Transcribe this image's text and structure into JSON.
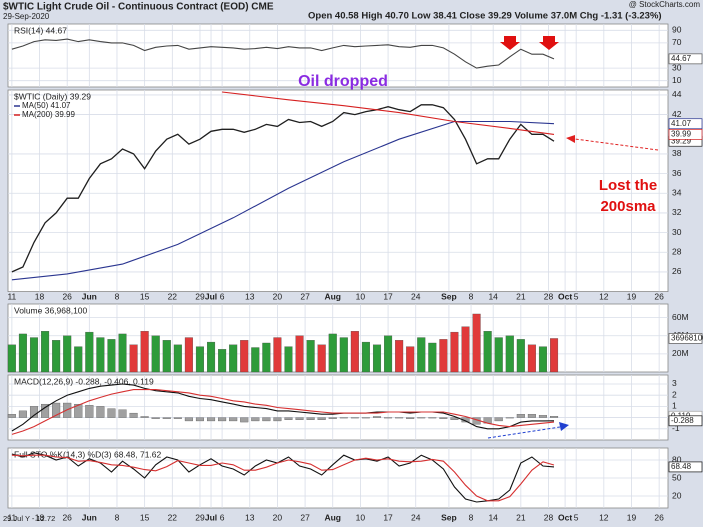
{
  "header": {
    "title": "$WTIC Light Crude Oil - Continuous Contract (EOD) CME",
    "date": "29-Sep-2020",
    "quote": "Open 40.58 High 40.70 Low 38.41 Close 39.29 Volume 37.0M Chg -1.31 (-3.23%)",
    "source": "@ StockCharts.com",
    "footer": "29 Jul Y - 12.72"
  },
  "chart_data": [
    {
      "type": "line",
      "title": "RSI(14) 44.67",
      "last_label": "44.67",
      "x": [
        0,
        2,
        4,
        6,
        8,
        10,
        12,
        14,
        16,
        18,
        20,
        22,
        24,
        26,
        28,
        30,
        32,
        34,
        36,
        38,
        40,
        42,
        44,
        46,
        48,
        50,
        52,
        54,
        56,
        58,
        60,
        62,
        64,
        66,
        68,
        70,
        72,
        74,
        76,
        78,
        80,
        82,
        84,
        86,
        88,
        90,
        92,
        94,
        96,
        98
      ],
      "series": [
        {
          "name": "RSI(14)",
          "color": "#444444",
          "values": [
            60,
            65,
            72,
            75,
            74,
            76,
            72,
            75,
            72,
            70,
            70,
            66,
            58,
            63,
            65,
            66,
            60,
            62,
            64,
            63,
            62,
            60,
            61,
            63,
            61,
            64,
            62,
            62,
            58,
            62,
            66,
            64,
            65,
            66,
            67,
            64,
            63,
            66,
            66,
            62,
            52,
            40,
            30,
            33,
            35,
            48,
            60,
            52,
            52,
            44.67
          ]
        }
      ],
      "ylim": [
        0,
        100
      ],
      "yticks": [
        10,
        30,
        70,
        90
      ],
      "grid": true
    },
    {
      "type": "line",
      "title": "$WTIC (Daily) 39.29",
      "legend": [
        "MA(50) 41.07",
        "MA(200) 39.99"
      ],
      "annotations": [
        "Oil dropped",
        "Lost the",
        "200sma"
      ],
      "x": [
        0,
        2,
        4,
        6,
        8,
        10,
        12,
        14,
        16,
        18,
        20,
        22,
        24,
        26,
        28,
        30,
        32,
        34,
        36,
        38,
        40,
        42,
        44,
        46,
        48,
        50,
        52,
        54,
        56,
        58,
        60,
        62,
        64,
        66,
        68,
        70,
        72,
        74,
        76,
        78,
        80,
        82,
        84,
        86,
        88,
        90,
        92,
        94,
        96,
        98
      ],
      "series": [
        {
          "name": "$WTIC (Daily)",
          "color": "#1f1f1f",
          "last_label": "39.29",
          "values": [
            26,
            26.5,
            29,
            31,
            32,
            33.5,
            33.5,
            35.5,
            37,
            37.5,
            38.5,
            38,
            36.5,
            38.3,
            39.5,
            40,
            39,
            39.5,
            40.3,
            40.5,
            40.5,
            40.2,
            40.5,
            41,
            40.8,
            41.5,
            41.2,
            41.3,
            40.8,
            41.3,
            42.2,
            42,
            42.3,
            42.5,
            42.8,
            42.5,
            42.3,
            43,
            43,
            42.7,
            41.5,
            39.5,
            37,
            37.5,
            37.5,
            39.5,
            41,
            40,
            40,
            39.29
          ]
        },
        {
          "name": "MA(50)",
          "color": "#2a3590",
          "last_label": "41.07",
          "x": [
            0,
            10,
            20,
            30,
            40,
            50,
            60,
            70,
            80,
            90,
            98
          ],
          "values": [
            25.2,
            25.8,
            26.8,
            28.8,
            31.5,
            34.5,
            37.2,
            39.5,
            41.3,
            41.3,
            41.07
          ]
        },
        {
          "name": "MA(200)",
          "color": "#d62020",
          "last_label": "39.99",
          "x": [
            38,
            50,
            60,
            70,
            80,
            90,
            98
          ],
          "values": [
            44.3,
            43.5,
            42.9,
            42.2,
            41.3,
            40.6,
            39.99
          ]
        }
      ],
      "xlim": [
        -0.7,
        118.6
      ],
      "xticks": [
        {
          "value": 0,
          "label": "11"
        },
        {
          "value": 5,
          "label": "18"
        },
        {
          "value": 10,
          "label": "26"
        },
        {
          "value": 14,
          "label": "Jun"
        },
        {
          "value": 19,
          "label": "8"
        },
        {
          "value": 24,
          "label": "15"
        },
        {
          "value": 29,
          "label": "22"
        },
        {
          "value": 34,
          "label": "29"
        },
        {
          "value": 36,
          "label": "Jul"
        },
        {
          "value": 38,
          "label": "6"
        },
        {
          "value": 43,
          "label": "13"
        },
        {
          "value": 48,
          "label": "20"
        },
        {
          "value": 53,
          "label": "27"
        },
        {
          "value": 58,
          "label": "Aug"
        },
        {
          "value": 63,
          "label": "10"
        },
        {
          "value": 68,
          "label": "17"
        },
        {
          "value": 73,
          "label": "24"
        },
        {
          "value": 79,
          "label": "Sep"
        },
        {
          "value": 83,
          "label": "8"
        },
        {
          "value": 87,
          "label": "14"
        },
        {
          "value": 92,
          "label": "21"
        },
        {
          "value": 97,
          "label": "28"
        },
        {
          "value": 100,
          "label": "Oct"
        },
        {
          "value": 102,
          "label": "5"
        },
        {
          "value": 107,
          "label": "12"
        },
        {
          "value": 112,
          "label": "19"
        },
        {
          "value": 117,
          "label": "26"
        }
      ],
      "ylim": [
        24,
        44.5
      ],
      "yticks": [
        26,
        28,
        30,
        32,
        34,
        36,
        38,
        42,
        44
      ],
      "grid": true
    },
    {
      "type": "bar",
      "title": "Volume 36,968,100",
      "last_label": "36968100",
      "up_color": "#2e9b3a",
      "down_color": "#e03a3a",
      "x": [
        0,
        2,
        4,
        6,
        8,
        10,
        12,
        14,
        16,
        18,
        20,
        22,
        24,
        26,
        28,
        30,
        32,
        34,
        36,
        38,
        40,
        42,
        44,
        46,
        48,
        50,
        52,
        54,
        56,
        58,
        60,
        62,
        64,
        66,
        68,
        70,
        72,
        74,
        76,
        78,
        80,
        82,
        84,
        86,
        88,
        90,
        92,
        94,
        96,
        98
      ],
      "series": [
        {
          "name": "Volume",
          "values": [
            30,
            42,
            38,
            45,
            35,
            40,
            28,
            44,
            38,
            36,
            42,
            30,
            45,
            40,
            35,
            30,
            38,
            28,
            33,
            25,
            30,
            35,
            27,
            32,
            38,
            28,
            40,
            35,
            30,
            42,
            38,
            45,
            33,
            30,
            40,
            35,
            28,
            38,
            32,
            36,
            44,
            50,
            64,
            45,
            38,
            40,
            36,
            30,
            28,
            37
          ]
        }
      ],
      "ylim": [
        0,
        75
      ],
      "yticks": [
        {
          "value": 20,
          "label": "20M"
        },
        {
          "value": 40,
          "label": "40M"
        },
        {
          "value": 60,
          "label": "60M"
        }
      ],
      "grid": true
    },
    {
      "type": "line",
      "title": "MACD(12,26,9) -0.288, -0.406, 0.119",
      "x": [
        0,
        2,
        4,
        6,
        8,
        10,
        12,
        14,
        16,
        18,
        20,
        22,
        24,
        26,
        28,
        30,
        32,
        34,
        36,
        38,
        40,
        42,
        44,
        46,
        48,
        50,
        52,
        54,
        56,
        58,
        60,
        62,
        64,
        66,
        68,
        70,
        72,
        74,
        76,
        78,
        80,
        82,
        84,
        86,
        88,
        90,
        92,
        94,
        96,
        98
      ],
      "series": [
        {
          "name": "Histogram",
          "kind": "bar",
          "color": "#a0a0a0",
          "last_label": "0.119",
          "values": [
            0.3,
            0.6,
            1.0,
            1.2,
            1.3,
            1.3,
            1.2,
            1.1,
            1.0,
            0.8,
            0.7,
            0.4,
            0.1,
            -0.1,
            -0.1,
            -0.1,
            -0.3,
            -0.3,
            -0.3,
            -0.3,
            -0.3,
            -0.4,
            -0.3,
            -0.3,
            -0.3,
            -0.2,
            -0.2,
            -0.2,
            -0.2,
            -0.1,
            0,
            0,
            0,
            0.1,
            0,
            0,
            -0.1,
            0,
            0,
            -0.1,
            -0.2,
            -0.4,
            -0.6,
            -0.5,
            -0.3,
            0,
            0.3,
            0.3,
            0.2,
            0.119
          ]
        },
        {
          "name": "MACD",
          "color": "#111111",
          "last_label": "-0.288",
          "values": [
            -1.2,
            -0.6,
            0.2,
            0.9,
            1.5,
            2.0,
            2.3,
            2.6,
            2.8,
            2.9,
            3.0,
            2.9,
            2.6,
            2.4,
            2.3,
            2.2,
            1.9,
            1.7,
            1.6,
            1.4,
            1.2,
            1.0,
            0.9,
            0.8,
            0.6,
            0.6,
            0.5,
            0.4,
            0.3,
            0.3,
            0.4,
            0.4,
            0.4,
            0.5,
            0.5,
            0.5,
            0.4,
            0.5,
            0.5,
            0.4,
            0.1,
            -0.3,
            -0.8,
            -1.0,
            -1.0,
            -0.8,
            -0.4,
            -0.3,
            -0.3,
            -0.288
          ]
        },
        {
          "name": "Signal",
          "color": "#d63030",
          "values": [
            -1.5,
            -1.2,
            -0.8,
            -0.3,
            0.2,
            0.7,
            1.1,
            1.5,
            1.8,
            2.1,
            2.3,
            2.5,
            2.5,
            2.5,
            2.4,
            2.3,
            2.2,
            2.0,
            1.9,
            1.7,
            1.5,
            1.4,
            1.2,
            1.1,
            0.9,
            0.8,
            0.7,
            0.6,
            0.5,
            0.4,
            0.4,
            0.4,
            0.4,
            0.4,
            0.5,
            0.5,
            0.5,
            0.5,
            0.5,
            0.5,
            0.3,
            0.1,
            -0.2,
            -0.5,
            -0.7,
            -0.8,
            -0.7,
            -0.6,
            -0.5,
            -0.406
          ]
        }
      ],
      "ylim": [
        -2,
        3.8
      ],
      "yticks": [
        -1,
        0,
        1,
        2,
        3
      ],
      "grid": true
    },
    {
      "type": "line",
      "title": "Full STO %K(14,3) %D(3) 68.48, 71.62",
      "x": [
        0,
        2,
        4,
        6,
        8,
        10,
        12,
        14,
        16,
        18,
        20,
        22,
        24,
        26,
        28,
        30,
        32,
        34,
        36,
        38,
        40,
        42,
        44,
        46,
        48,
        50,
        52,
        54,
        56,
        58,
        60,
        62,
        64,
        66,
        68,
        70,
        72,
        74,
        76,
        78,
        80,
        82,
        84,
        86,
        88,
        90,
        92,
        94,
        96,
        98
      ],
      "series": [
        {
          "name": "%K(14,3)",
          "color": "#111111",
          "last_label": "68.48",
          "values": [
            90,
            85,
            92,
            88,
            80,
            85,
            70,
            82,
            75,
            60,
            78,
            65,
            50,
            72,
            85,
            80,
            60,
            72,
            82,
            70,
            65,
            55,
            70,
            80,
            75,
            85,
            70,
            65,
            55,
            72,
            88,
            80,
            82,
            78,
            85,
            70,
            75,
            88,
            80,
            65,
            35,
            15,
            10,
            12,
            15,
            30,
            75,
            85,
            70,
            68.48
          ]
        },
        {
          "name": "%D(3)",
          "color": "#d63030",
          "values": [
            88,
            87,
            88,
            88,
            85,
            84,
            78,
            79,
            76,
            72,
            71,
            68,
            64,
            62,
            69,
            79,
            75,
            71,
            71,
            75,
            72,
            63,
            63,
            68,
            75,
            80,
            77,
            73,
            63,
            64,
            72,
            80,
            83,
            80,
            82,
            78,
            77,
            78,
            81,
            78,
            60,
            38,
            20,
            12,
            12,
            19,
            40,
            63,
            77,
            71.62
          ]
        }
      ],
      "ylim": [
        0,
        100
      ],
      "yticks": [
        20,
        50,
        80
      ],
      "grid": true
    }
  ]
}
